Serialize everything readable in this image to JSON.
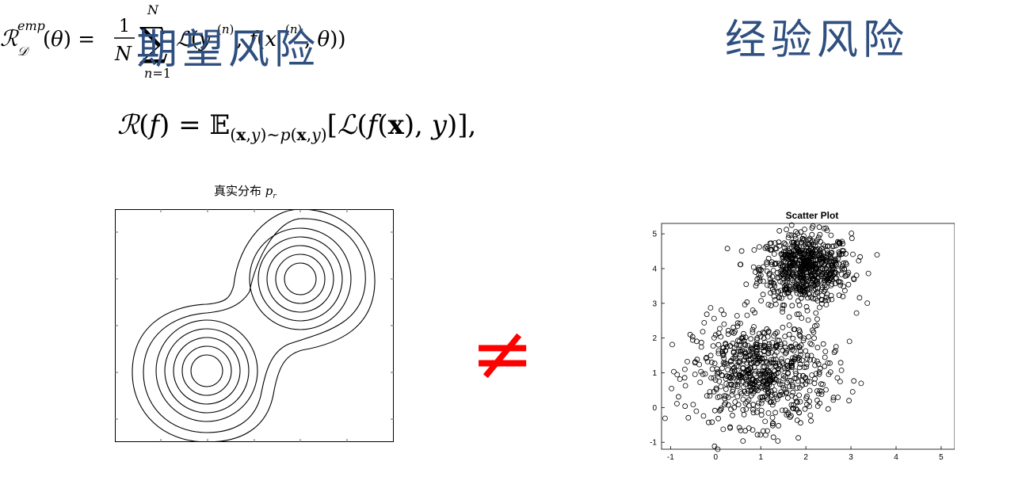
{
  "titles": {
    "left": "期望风险",
    "right": "经验风险"
  },
  "formulas": {
    "left_text": "𝓡(f) = 𝔼(x,y)∼p(x,y)[𝓛(f(x), y)],",
    "right_text": "𝓡_𝒟^emp(θ) = 1/N Σ_{n=1}^{N} 𝓛(y^(n), f(x^(n), θ))"
  },
  "contour": {
    "caption": "真实分布 p_r",
    "caption_main": "真实分布",
    "caption_var": "p",
    "caption_sub": "r"
  },
  "neq_symbol": "≠",
  "colors": {
    "title": "#2f4f7f",
    "neq": "#ff0000"
  },
  "chart_data": {
    "type": "scatter",
    "title": "Scatter Plot",
    "xlim": [
      -1.2,
      5.3
    ],
    "ylim": [
      -1.2,
      5.3
    ],
    "xticks": [
      -1,
      0,
      1,
      2,
      3,
      4,
      5
    ],
    "yticks": [
      -1,
      0,
      1,
      2,
      3,
      4,
      5
    ],
    "marker": "open-circle",
    "clusters": [
      {
        "center": [
          2.0,
          4.0
        ],
        "std": 0.5,
        "count": 700
      },
      {
        "center": [
          1.0,
          1.0
        ],
        "std": 0.75,
        "count": 700
      }
    ]
  }
}
